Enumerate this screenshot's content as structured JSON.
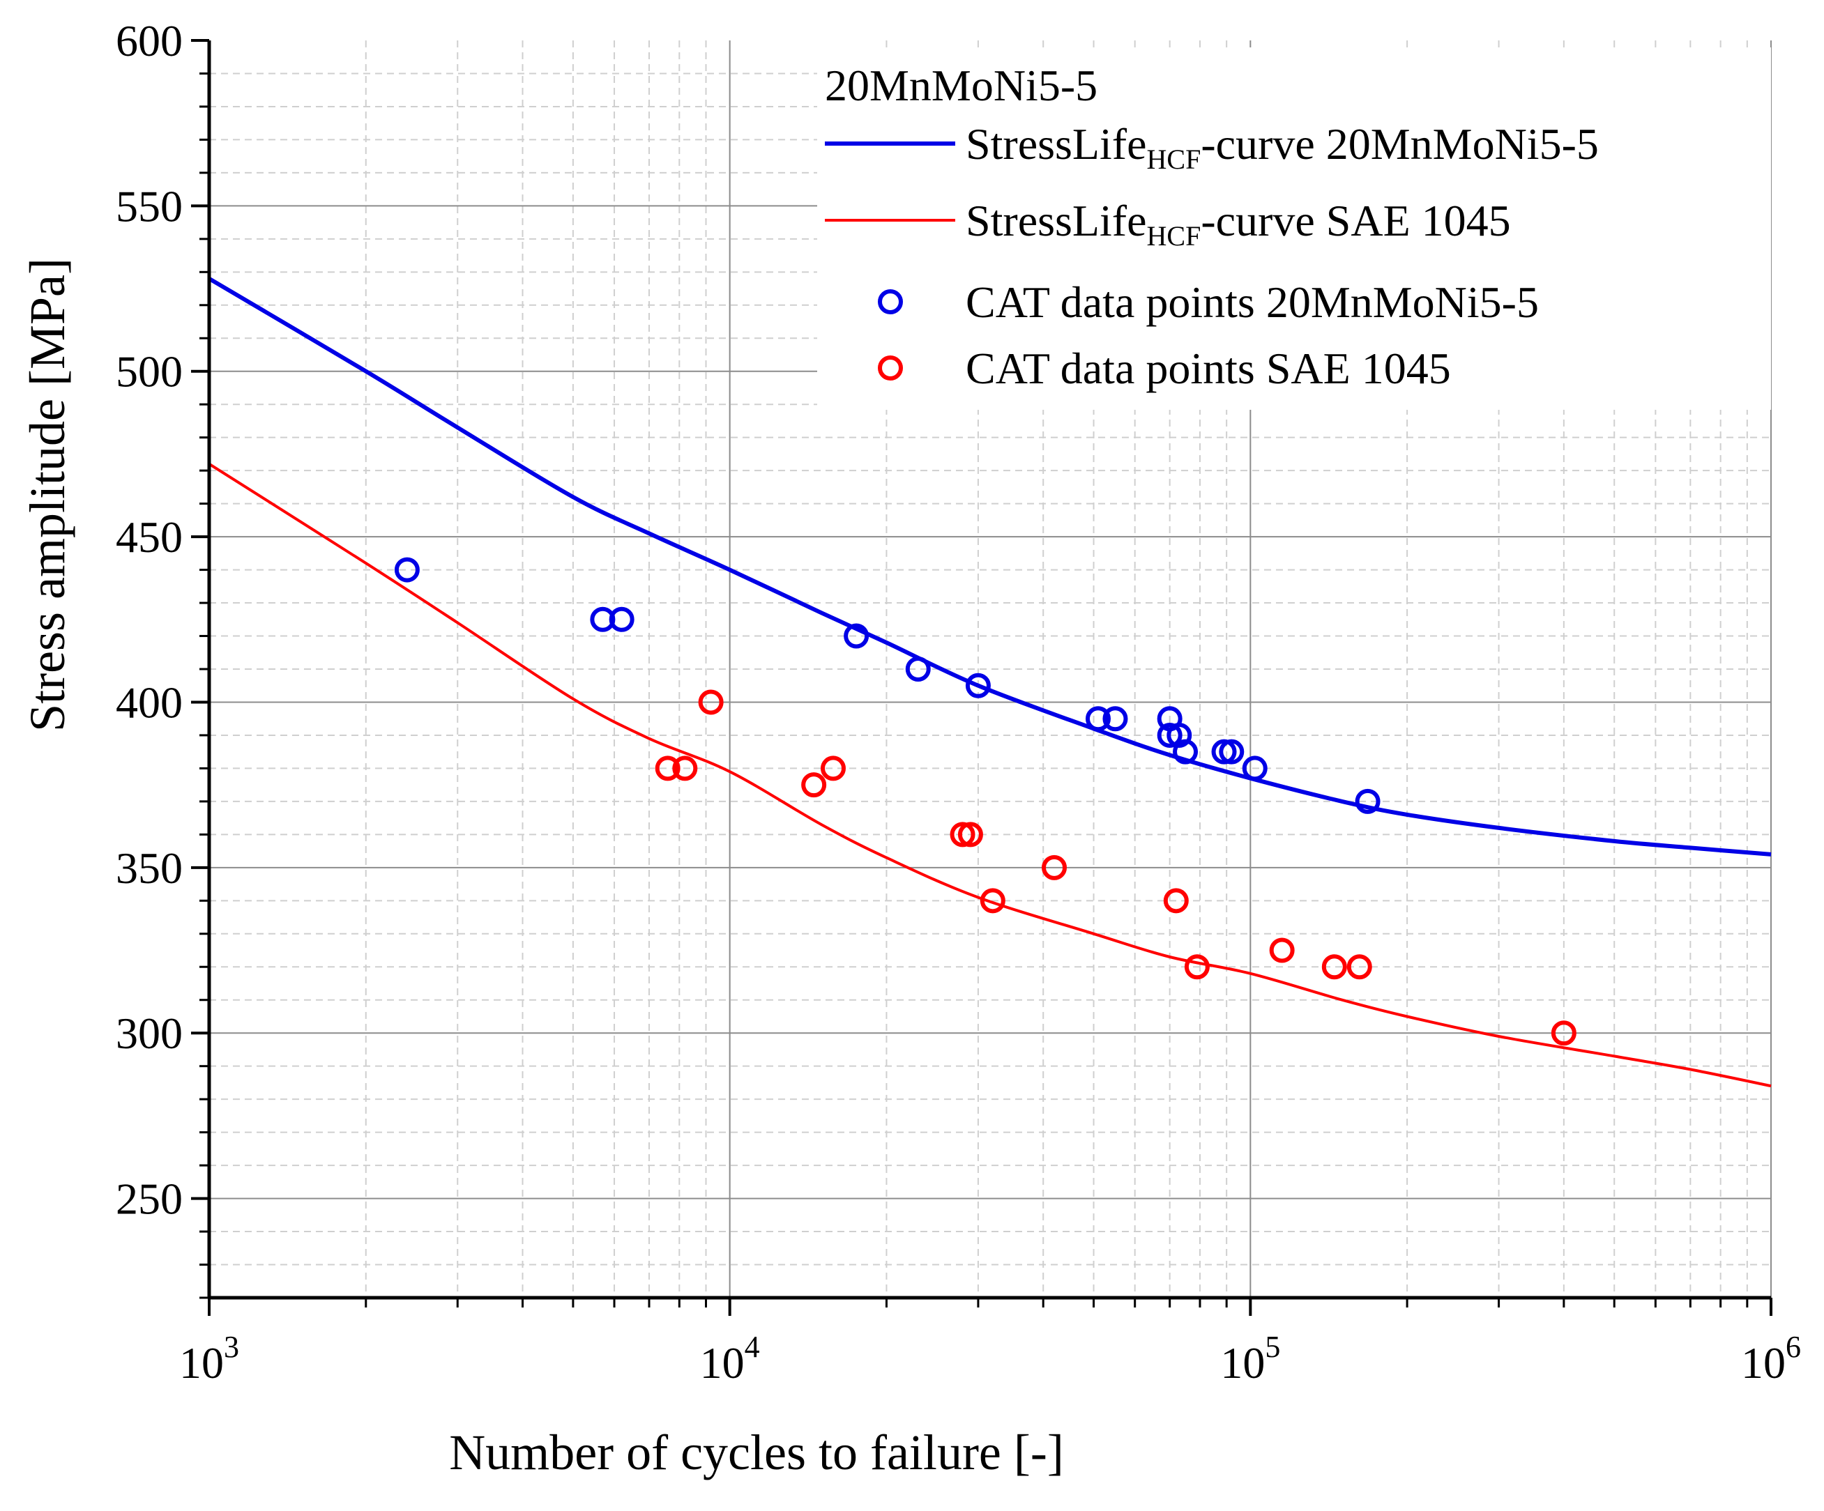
{
  "chart_data": {
    "type": "scatter",
    "title": "",
    "xlabel": "Number of cycles to failure [-]",
    "ylabel": "Stress amplitude [MPa]",
    "xscale": "log",
    "xlim": [
      1000,
      1000000
    ],
    "ylim": [
      220,
      600
    ],
    "grid": true,
    "legend_position": "top-right",
    "x_ticks": [
      {
        "value": 1000,
        "base": "10",
        "exp": "3"
      },
      {
        "value": 10000,
        "base": "10",
        "exp": "4"
      },
      {
        "value": 100000,
        "base": "10",
        "exp": "5"
      },
      {
        "value": 1000000,
        "base": "10",
        "exp": "6"
      }
    ],
    "y_ticks": [
      {
        "value": 250,
        "label": "250"
      },
      {
        "value": 300,
        "label": "300"
      },
      {
        "value": 350,
        "label": "350"
      },
      {
        "value": 400,
        "label": "400"
      },
      {
        "value": 450,
        "label": "450"
      },
      {
        "value": 500,
        "label": "500"
      },
      {
        "value": 550,
        "label": "550"
      },
      {
        "value": 600,
        "label": "600"
      }
    ],
    "legend": {
      "title": "20MnMoNi5-5",
      "entries": [
        {
          "kind": "line",
          "color": "#0000e6",
          "pre": "StressLife",
          "sub": "HCF",
          "post": "-curve 20MnMoNi5-5"
        },
        {
          "kind": "line",
          "color": "#ff0000",
          "pre": "StressLife",
          "sub": "HCF",
          "post": "-curve SAE 1045"
        },
        {
          "kind": "marker",
          "color": "#0000e6",
          "pre": "CAT data points 20MnMoNi5-5",
          "sub": "",
          "post": ""
        },
        {
          "kind": "marker",
          "color": "#ff0000",
          "pre": "CAT data points SAE 1045",
          "sub": "",
          "post": ""
        }
      ]
    },
    "series": [
      {
        "name": "StressLife-HCF-curve 20MnMoNi5-5",
        "kind": "line",
        "color": "#0000e6",
        "x": [
          1000,
          2000,
          3000,
          5000,
          7000,
          10000,
          15000,
          20000,
          30000,
          50000,
          70000,
          100000,
          150000,
          200000,
          300000,
          500000,
          700000,
          1000000
        ],
        "y": [
          528,
          500,
          483,
          462,
          451,
          440,
          427,
          418,
          405,
          392,
          384,
          377,
          370,
          366,
          362,
          358,
          356,
          354
        ]
      },
      {
        "name": "StressLife-HCF-curve SAE 1045",
        "kind": "line",
        "color": "#ff0000",
        "x": [
          1000,
          2000,
          3000,
          5000,
          7000,
          10000,
          15000,
          20000,
          30000,
          50000,
          70000,
          100000,
          150000,
          200000,
          300000,
          500000,
          700000,
          1000000
        ],
        "y": [
          472,
          442,
          424,
          401,
          389,
          379,
          363,
          353,
          341,
          330,
          323,
          318,
          310,
          305,
          299,
          293,
          289,
          284
        ]
      },
      {
        "name": "CAT data points 20MnMoNi5-5",
        "kind": "marker",
        "color": "#0000e6",
        "x": [
          2400,
          5700,
          6200,
          17500,
          23000,
          30000,
          51000,
          55000,
          70000,
          70000,
          73000,
          75000,
          89000,
          92000,
          102000,
          168000
        ],
        "y": [
          440,
          425,
          425,
          420,
          410,
          405,
          395,
          395,
          395,
          390,
          390,
          385,
          385,
          385,
          380,
          370
        ]
      },
      {
        "name": "CAT data points SAE 1045",
        "kind": "marker",
        "color": "#ff0000",
        "x": [
          7600,
          8200,
          9200,
          14500,
          15800,
          28000,
          29000,
          32000,
          42000,
          72000,
          79000,
          115000,
          145000,
          162000,
          400000
        ],
        "y": [
          380,
          380,
          400,
          375,
          380,
          360,
          360,
          340,
          350,
          340,
          320,
          325,
          320,
          320,
          300
        ]
      }
    ]
  }
}
